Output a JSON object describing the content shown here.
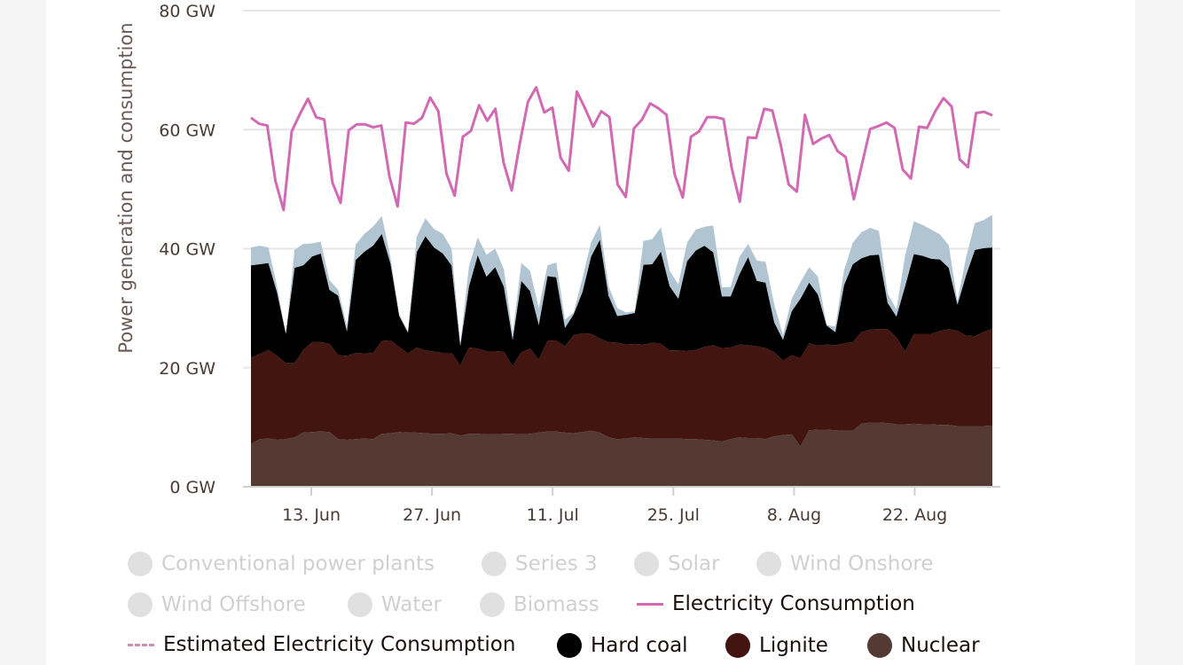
{
  "chart_data": {
    "type": "area",
    "title": "",
    "ylabel": "Power generation and consumption",
    "ylim": [
      0,
      80
    ],
    "yticks": [
      "0 GW",
      "20 GW",
      "40 GW",
      "60 GW",
      "80 GW"
    ],
    "ytick_values": [
      0,
      20,
      40,
      60,
      80
    ],
    "x_start": "2021-06-06",
    "x_end": "2021-08-31",
    "xticks": [
      {
        "date": "2021-06-13",
        "label": "13. Jun"
      },
      {
        "date": "2021-06-27",
        "label": "27. Jun"
      },
      {
        "date": "2021-07-11",
        "label": "11. Jul"
      },
      {
        "date": "2021-07-25",
        "label": "25. Jul"
      },
      {
        "date": "2021-08-08",
        "label": "8. Aug"
      },
      {
        "date": "2021-08-22",
        "label": "22. Aug"
      }
    ],
    "grid": true,
    "legend_position": "bottom",
    "stacked": true,
    "series": [
      {
        "name": "Nuclear",
        "color": "#553a33",
        "values": [
          7.2,
          8.0,
          8.1,
          7.9,
          8.0,
          8.3,
          9.1,
          9.2,
          9.3,
          9.2,
          8.0,
          7.9,
          8.0,
          8.1,
          8.0,
          8.9,
          9.0,
          9.2,
          9.1,
          9.1,
          9.0,
          8.9,
          8.9,
          9.0,
          8.6,
          8.9,
          8.9,
          8.8,
          8.8,
          8.9,
          8.9,
          8.8,
          8.9,
          9.1,
          9.3,
          9.3,
          9.1,
          9.0,
          9.2,
          9.4,
          9.1,
          8.3,
          8.0,
          8.1,
          8.3,
          8.2,
          8.1,
          8.1,
          8.1,
          8.1,
          8.0,
          8.0,
          7.9,
          7.8,
          7.6,
          8.0,
          8.3,
          8.2,
          8.2,
          8.0,
          8.5,
          8.7,
          8.8,
          6.8,
          9.5,
          9.6,
          9.6,
          9.5,
          9.4,
          9.4,
          10.6,
          10.8,
          10.8,
          10.7,
          10.5,
          10.5,
          10.6,
          10.5,
          10.5,
          10.4,
          10.4,
          10.2,
          10.2,
          10.2,
          10.2,
          10.3
        ]
      },
      {
        "name": "Lignite",
        "color": "#431510",
        "values": [
          14.5,
          14.3,
          14.9,
          14.1,
          12.8,
          12.5,
          13.9,
          15.1,
          15.0,
          14.8,
          14.1,
          14.1,
          14.5,
          14.3,
          14.5,
          15.6,
          15.6,
          14.3,
          13.3,
          14.3,
          13.9,
          13.8,
          13.6,
          13.5,
          11.8,
          14.5,
          14.3,
          14.0,
          14.0,
          13.8,
          11.4,
          13.8,
          14.3,
          12.3,
          15.2,
          15.3,
          14.5,
          16.5,
          16.6,
          16.3,
          15.8,
          16.0,
          16.2,
          15.8,
          15.7,
          15.7,
          16.1,
          15.9,
          14.8,
          14.8,
          14.8,
          15.0,
          15.6,
          16.0,
          15.7,
          15.4,
          15.6,
          15.6,
          15.4,
          15.3,
          14.1,
          12.5,
          13.3,
          14.8,
          14.6,
          14.1,
          14.3,
          14.3,
          14.7,
          14.9,
          15.4,
          15.6,
          15.7,
          15.8,
          14.6,
          12.2,
          15.1,
          15.2,
          15.2,
          15.8,
          16.1,
          16.0,
          15.2,
          15.1,
          15.8,
          16.3
        ]
      },
      {
        "name": "Hard coal",
        "color": "#000000",
        "values": [
          15.5,
          15.1,
          14.6,
          10.6,
          4.9,
          16.0,
          14.2,
          14.4,
          14.9,
          9.1,
          10.0,
          4.1,
          15.6,
          17.1,
          18.0,
          18.0,
          12.9,
          5.2,
          3.5,
          16.0,
          19.2,
          17.5,
          16.7,
          14.7,
          3.3,
          10.3,
          15.7,
          12.5,
          14.1,
          10.9,
          4.4,
          12.0,
          9.7,
          5.8,
          10.9,
          10.6,
          3.1,
          3.5,
          6.9,
          13.0,
          16.6,
          7.8,
          4.5,
          5.0,
          5.2,
          13.4,
          13.2,
          15.5,
          10.8,
          8.7,
          15.1,
          16.7,
          17.0,
          15.6,
          8.7,
          8.6,
          11.8,
          14.8,
          11.0,
          11.0,
          5.0,
          3.5,
          7.4,
          10.0,
          10.2,
          8.6,
          3.2,
          2.2,
          9.8,
          13.1,
          12.4,
          12.5,
          12.5,
          4.4,
          3.5,
          11.0,
          13.4,
          13.1,
          12.6,
          12.0,
          10.3,
          4.4,
          10.2,
          14.5,
          14.1,
          13.6
        ]
      },
      {
        "name": "Series 3",
        "color": "#b0c4d2",
        "values": [
          3.0,
          3.1,
          2.6,
          1.0,
          0.0,
          3.0,
          3.6,
          2.2,
          2.0,
          1.6,
          1.0,
          0.9,
          2.6,
          3.0,
          3.2,
          3.0,
          1.0,
          0.3,
          0.2,
          2.6,
          3.0,
          3.1,
          3.3,
          2.8,
          0.3,
          3.4,
          3.0,
          3.7,
          3.1,
          2.9,
          1.0,
          3.0,
          3.4,
          2.8,
          1.8,
          2.5,
          1.4,
          0.3,
          2.3,
          2.4,
          2.5,
          1.6,
          1.3,
          0.4,
          0.3,
          4.0,
          4.2,
          4.1,
          2.6,
          2.4,
          3.1,
          3.5,
          3.2,
          4.5,
          1.5,
          1.6,
          2.9,
          2.2,
          3.4,
          3.5,
          3.0,
          0.8,
          2.1,
          2.8,
          2.6,
          3.0,
          0.1,
          0.9,
          2.5,
          3.6,
          4.4,
          4.6,
          4.0,
          1.6,
          1.2,
          5.1,
          5.5,
          5.2,
          4.9,
          4.2,
          3.8,
          0.6,
          3.0,
          4.5,
          4.7,
          5.5
        ]
      }
    ],
    "consumption_series": {
      "name": "Electricity Consumption",
      "color": "#d16ab3",
      "values": [
        62.0,
        61.0,
        60.7,
        51.4,
        46.5,
        59.7,
        62.6,
        65.2,
        62.1,
        61.7,
        51.1,
        47.7,
        59.9,
        60.9,
        60.9,
        60.4,
        60.7,
        52.1,
        47.1,
        61.2,
        61.0,
        62.0,
        65.4,
        63.1,
        52.6,
        48.9,
        58.8,
        59.8,
        64.1,
        61.5,
        63.5,
        54.5,
        49.8,
        57.7,
        64.7,
        67.1,
        62.9,
        63.7,
        55.3,
        53.1,
        66.4,
        63.6,
        60.5,
        63.1,
        62.1,
        50.8,
        48.7,
        60.2,
        61.7,
        64.4,
        63.6,
        62.5,
        52.5,
        48.6,
        58.8,
        59.7,
        62.1,
        62.1,
        61.8,
        53.6,
        47.9,
        58.7,
        58.6,
        63.5,
        63.2,
        57.6,
        50.8,
        49.6,
        62.5,
        57.6,
        58.5,
        59.1,
        56.4,
        55.4,
        48.3,
        54.2,
        60.1,
        60.6,
        61.2,
        60.3,
        53.3,
        51.8,
        60.5,
        60.3,
        63.1,
        65.3,
        63.9,
        55.0,
        53.7,
        62.8,
        63.0,
        62.4
      ]
    }
  },
  "legend": {
    "items": [
      {
        "label": "Conventional power plants",
        "state": "hidden"
      },
      {
        "label": "Series 3",
        "state": "hidden"
      },
      {
        "label": "Solar",
        "state": "hidden"
      },
      {
        "label": "Wind Onshore",
        "state": "hidden"
      },
      {
        "label": "Wind Offshore",
        "state": "hidden"
      },
      {
        "label": "Water",
        "state": "hidden"
      },
      {
        "label": "Biomass",
        "state": "hidden"
      },
      {
        "label": "Electricity Consumption",
        "state": "visible",
        "marker": "line",
        "color": "#d16ab3"
      },
      {
        "label": "Estimated Electricity Consumption",
        "state": "visible",
        "marker": "dashed-line",
        "color": "#cc8fb8"
      },
      {
        "label": "Hard coal",
        "state": "visible",
        "marker": "dot",
        "color": "#000000"
      },
      {
        "label": "Lignite",
        "state": "visible",
        "marker": "dot",
        "color": "#431510"
      },
      {
        "label": "Nuclear",
        "state": "visible",
        "marker": "dot",
        "color": "#553a33"
      }
    ],
    "hidden_marker_color": "#e0e0e0"
  }
}
